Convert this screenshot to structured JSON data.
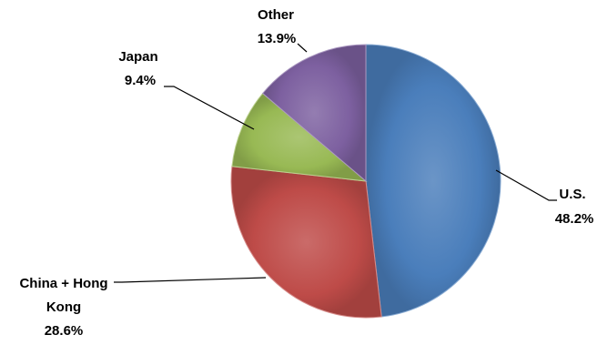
{
  "chart_data": {
    "type": "pie",
    "title": "",
    "slices": [
      {
        "label": "U.S.",
        "value": 48.2,
        "value_label": "48.2%",
        "color": "#4A7EBB"
      },
      {
        "label": "China + Hong Kong",
        "value": 28.6,
        "value_label": "28.6%",
        "color": "#BE4B48"
      },
      {
        "label": "Japan",
        "value": 9.4,
        "value_label": "9.4%",
        "color": "#98B954"
      },
      {
        "label": "Other",
        "value": 13.9,
        "value_label": "13.9%",
        "color": "#7D60A0"
      }
    ],
    "start_angle_deg": 0,
    "direction": "clockwise",
    "legend": "none",
    "labels_outside_with_leader_lines": true
  }
}
